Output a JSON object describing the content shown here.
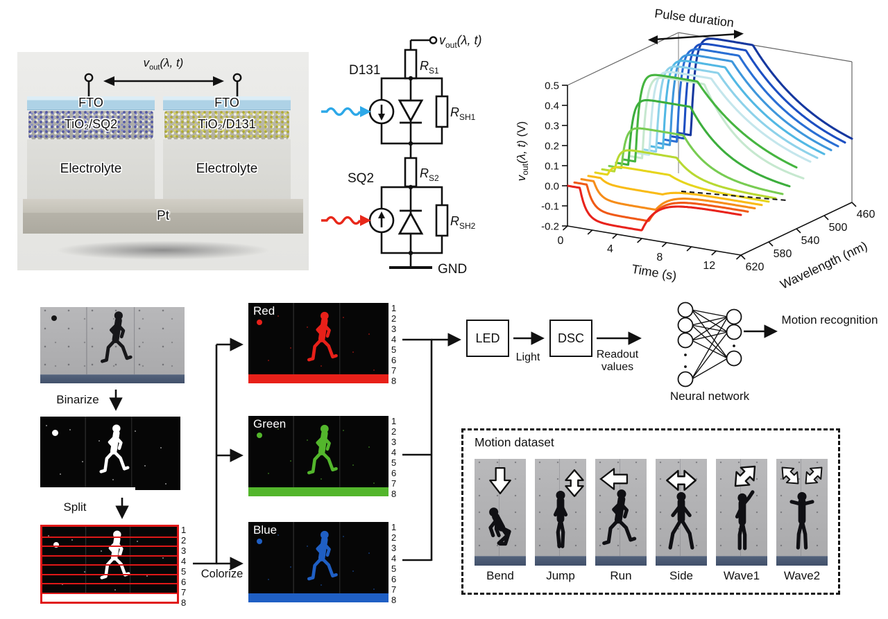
{
  "device_panel": {
    "vout": {
      "base": "v",
      "sub": "out",
      "args": "(λ, t)"
    },
    "fto_left": "FTO",
    "fto_right": "FTO",
    "layer_left": "TiO₂/SQ2",
    "layer_right": "TiO₂/D131",
    "electrolyte_left": "Electrolyte",
    "electrolyte_right": "Electrolyte",
    "pt": "Pt"
  },
  "circuit": {
    "vout": {
      "base": "v",
      "sub": "out",
      "args": "(λ, t)"
    },
    "d131": "D131",
    "sq2": "SQ2",
    "gnd": "GND",
    "rs1": {
      "base": "R",
      "sub": "S1"
    },
    "rsh1": {
      "base": "R",
      "sub": "SH1"
    },
    "rs2": {
      "base": "R",
      "sub": "S2"
    },
    "rsh2": {
      "base": "R",
      "sub": "SH2"
    },
    "light_blue": "#2da8e8",
    "light_red": "#e8281a"
  },
  "chart_data": {
    "type": "line",
    "projection": "3d",
    "annotation": "Pulse duration",
    "xlabel": "Time (s)",
    "zlabel": "Wavelength (nm)",
    "ylabel_parts": {
      "base": "v",
      "sub": "out",
      "args": "(λ, t)",
      "units": " (V)"
    },
    "xlim": [
      0,
      14
    ],
    "x_ticks_major": [
      0,
      4,
      8,
      12
    ],
    "x_ticks_all": [
      0,
      2,
      4,
      6,
      8,
      10,
      12,
      14
    ],
    "ylim": [
      -0.2,
      0.5
    ],
    "y_ticks": [
      0.5,
      0.4,
      0.3,
      0.2,
      0.1,
      0.0,
      -0.1,
      -0.2
    ],
    "zlim": [
      460,
      620
    ],
    "z_ticks": [
      620,
      580,
      540,
      500,
      460
    ],
    "pulse": {
      "on_s": 1,
      "off_s": 6
    },
    "series": [
      {
        "wavelength_nm": 620,
        "peak_V": -0.16,
        "color": "#e8231c"
      },
      {
        "wavelength_nm": 610,
        "peak_V": -0.13,
        "color": "#f05a17"
      },
      {
        "wavelength_nm": 600,
        "peak_V": -0.09,
        "color": "#f68d1a"
      },
      {
        "wavelength_nm": 590,
        "peak_V": -0.03,
        "color": "#f9bb16"
      },
      {
        "wavelength_nm": 580,
        "peak_V": 0.05,
        "color": "#e6d51d"
      },
      {
        "wavelength_nm": 570,
        "peak_V": 0.12,
        "color": "#b8d932"
      },
      {
        "wavelength_nm": 560,
        "peak_V": 0.215,
        "color": "#78cc52"
      },
      {
        "wavelength_nm": 550,
        "peak_V": 0.34,
        "color": "#3dae3d"
      },
      {
        "wavelength_nm": 540,
        "peak_V": 0.45,
        "color": "#46b540"
      },
      {
        "wavelength_nm": 530,
        "peak_V": 0.42,
        "color": "#c6e8cf"
      },
      {
        "wavelength_nm": 520,
        "peak_V": 0.432,
        "color": "#c4e6ec"
      },
      {
        "wavelength_nm": 510,
        "peak_V": 0.443,
        "color": "#8ed2ea"
      },
      {
        "wavelength_nm": 500,
        "peak_V": 0.455,
        "color": "#52b8e4"
      },
      {
        "wavelength_nm": 490,
        "peak_V": 0.468,
        "color": "#3f97dc"
      },
      {
        "wavelength_nm": 480,
        "peak_V": 0.48,
        "color": "#2a6fd4"
      },
      {
        "wavelength_nm": 470,
        "peak_V": 0.49,
        "color": "#1d4fc2"
      },
      {
        "wavelength_nm": 460,
        "peak_V": 0.5,
        "color": "#16389f"
      }
    ]
  },
  "pipeline": {
    "binarize": "Binarize",
    "split": "Split",
    "colorize": "Colorize",
    "row_numbers": [
      "1",
      "2",
      "3",
      "4",
      "5",
      "6",
      "7",
      "8"
    ],
    "channels": [
      {
        "label": "Red",
        "color": "#e82019"
      },
      {
        "label": "Green",
        "color": "#53b62c"
      },
      {
        "label": "Blue",
        "color": "#1f5fc4"
      }
    ],
    "split_frame_color": "#e01818"
  },
  "flow": {
    "led": "LED",
    "light": "Light",
    "dsc": "DSC",
    "readout": "Readout values",
    "neural_network": "Neural network",
    "motion_recognition": "Motion recognition"
  },
  "motion_dataset": {
    "title": "Motion dataset",
    "items": [
      {
        "label": "Bend",
        "pose": "bend",
        "arrow": "down"
      },
      {
        "label": "Jump",
        "pose": "jump",
        "arrow": "updown"
      },
      {
        "label": "Run",
        "pose": "run",
        "arrow": "left"
      },
      {
        "label": "Side",
        "pose": "side",
        "arrow": "leftright"
      },
      {
        "label": "Wave1",
        "pose": "wave1",
        "arrow": "diag"
      },
      {
        "label": "Wave2",
        "pose": "wave2",
        "arrow": "diag2"
      }
    ]
  }
}
